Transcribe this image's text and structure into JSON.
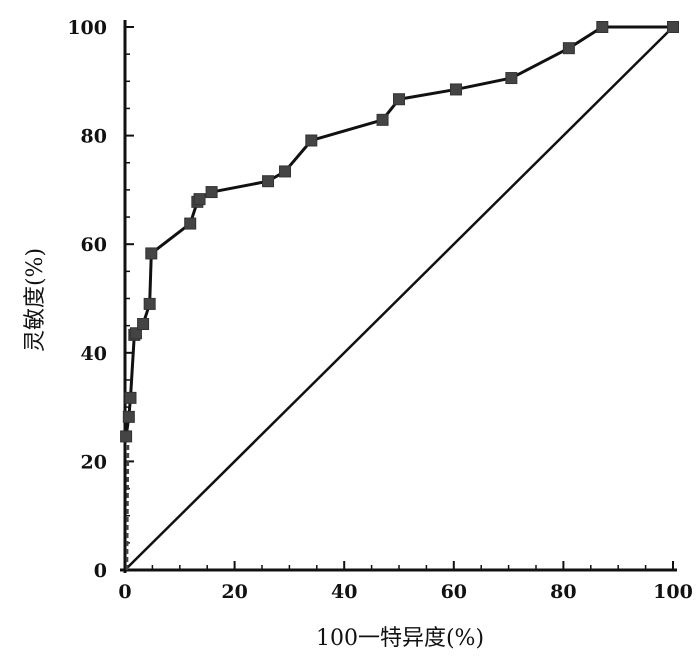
{
  "chart_data": {
    "type": "line",
    "xlabel": "100一特异度(%)",
    "ylabel": "灵敏度(%)",
    "xlim": [
      0,
      100
    ],
    "ylim": [
      0,
      100
    ],
    "x_ticks": [
      0,
      20,
      40,
      60,
      80,
      100
    ],
    "y_ticks": [
      0,
      20,
      40,
      60,
      80,
      100
    ],
    "x_tick_labels": [
      "0",
      "20",
      "40",
      "60",
      "80",
      "100"
    ],
    "y_tick_labels": [
      "0",
      "20",
      "40",
      "60",
      "80",
      "100"
    ],
    "grid": false,
    "series": [
      {
        "style": "line-with-square-markers",
        "x": [
          0,
          0.2,
          0.7,
          1.0,
          1.7,
          2.0,
          3.3,
          4.5,
          4.8,
          11.9,
          13.2,
          13.6,
          15.8,
          26.1,
          29.2,
          34.0,
          47.0,
          50.0,
          60.4,
          70.5,
          81.0,
          87.1,
          100
        ],
        "y": [
          0,
          24.6,
          28.2,
          31.7,
          43.3,
          43.6,
          45.3,
          49.0,
          58.3,
          63.8,
          67.8,
          68.3,
          69.6,
          71.6,
          73.4,
          79.1,
          82.9,
          86.7,
          88.5,
          90.6,
          96.1,
          100,
          100
        ]
      },
      {
        "style": "reference-diagonal",
        "x": [
          0,
          100
        ],
        "y": [
          0,
          100
        ]
      }
    ]
  }
}
